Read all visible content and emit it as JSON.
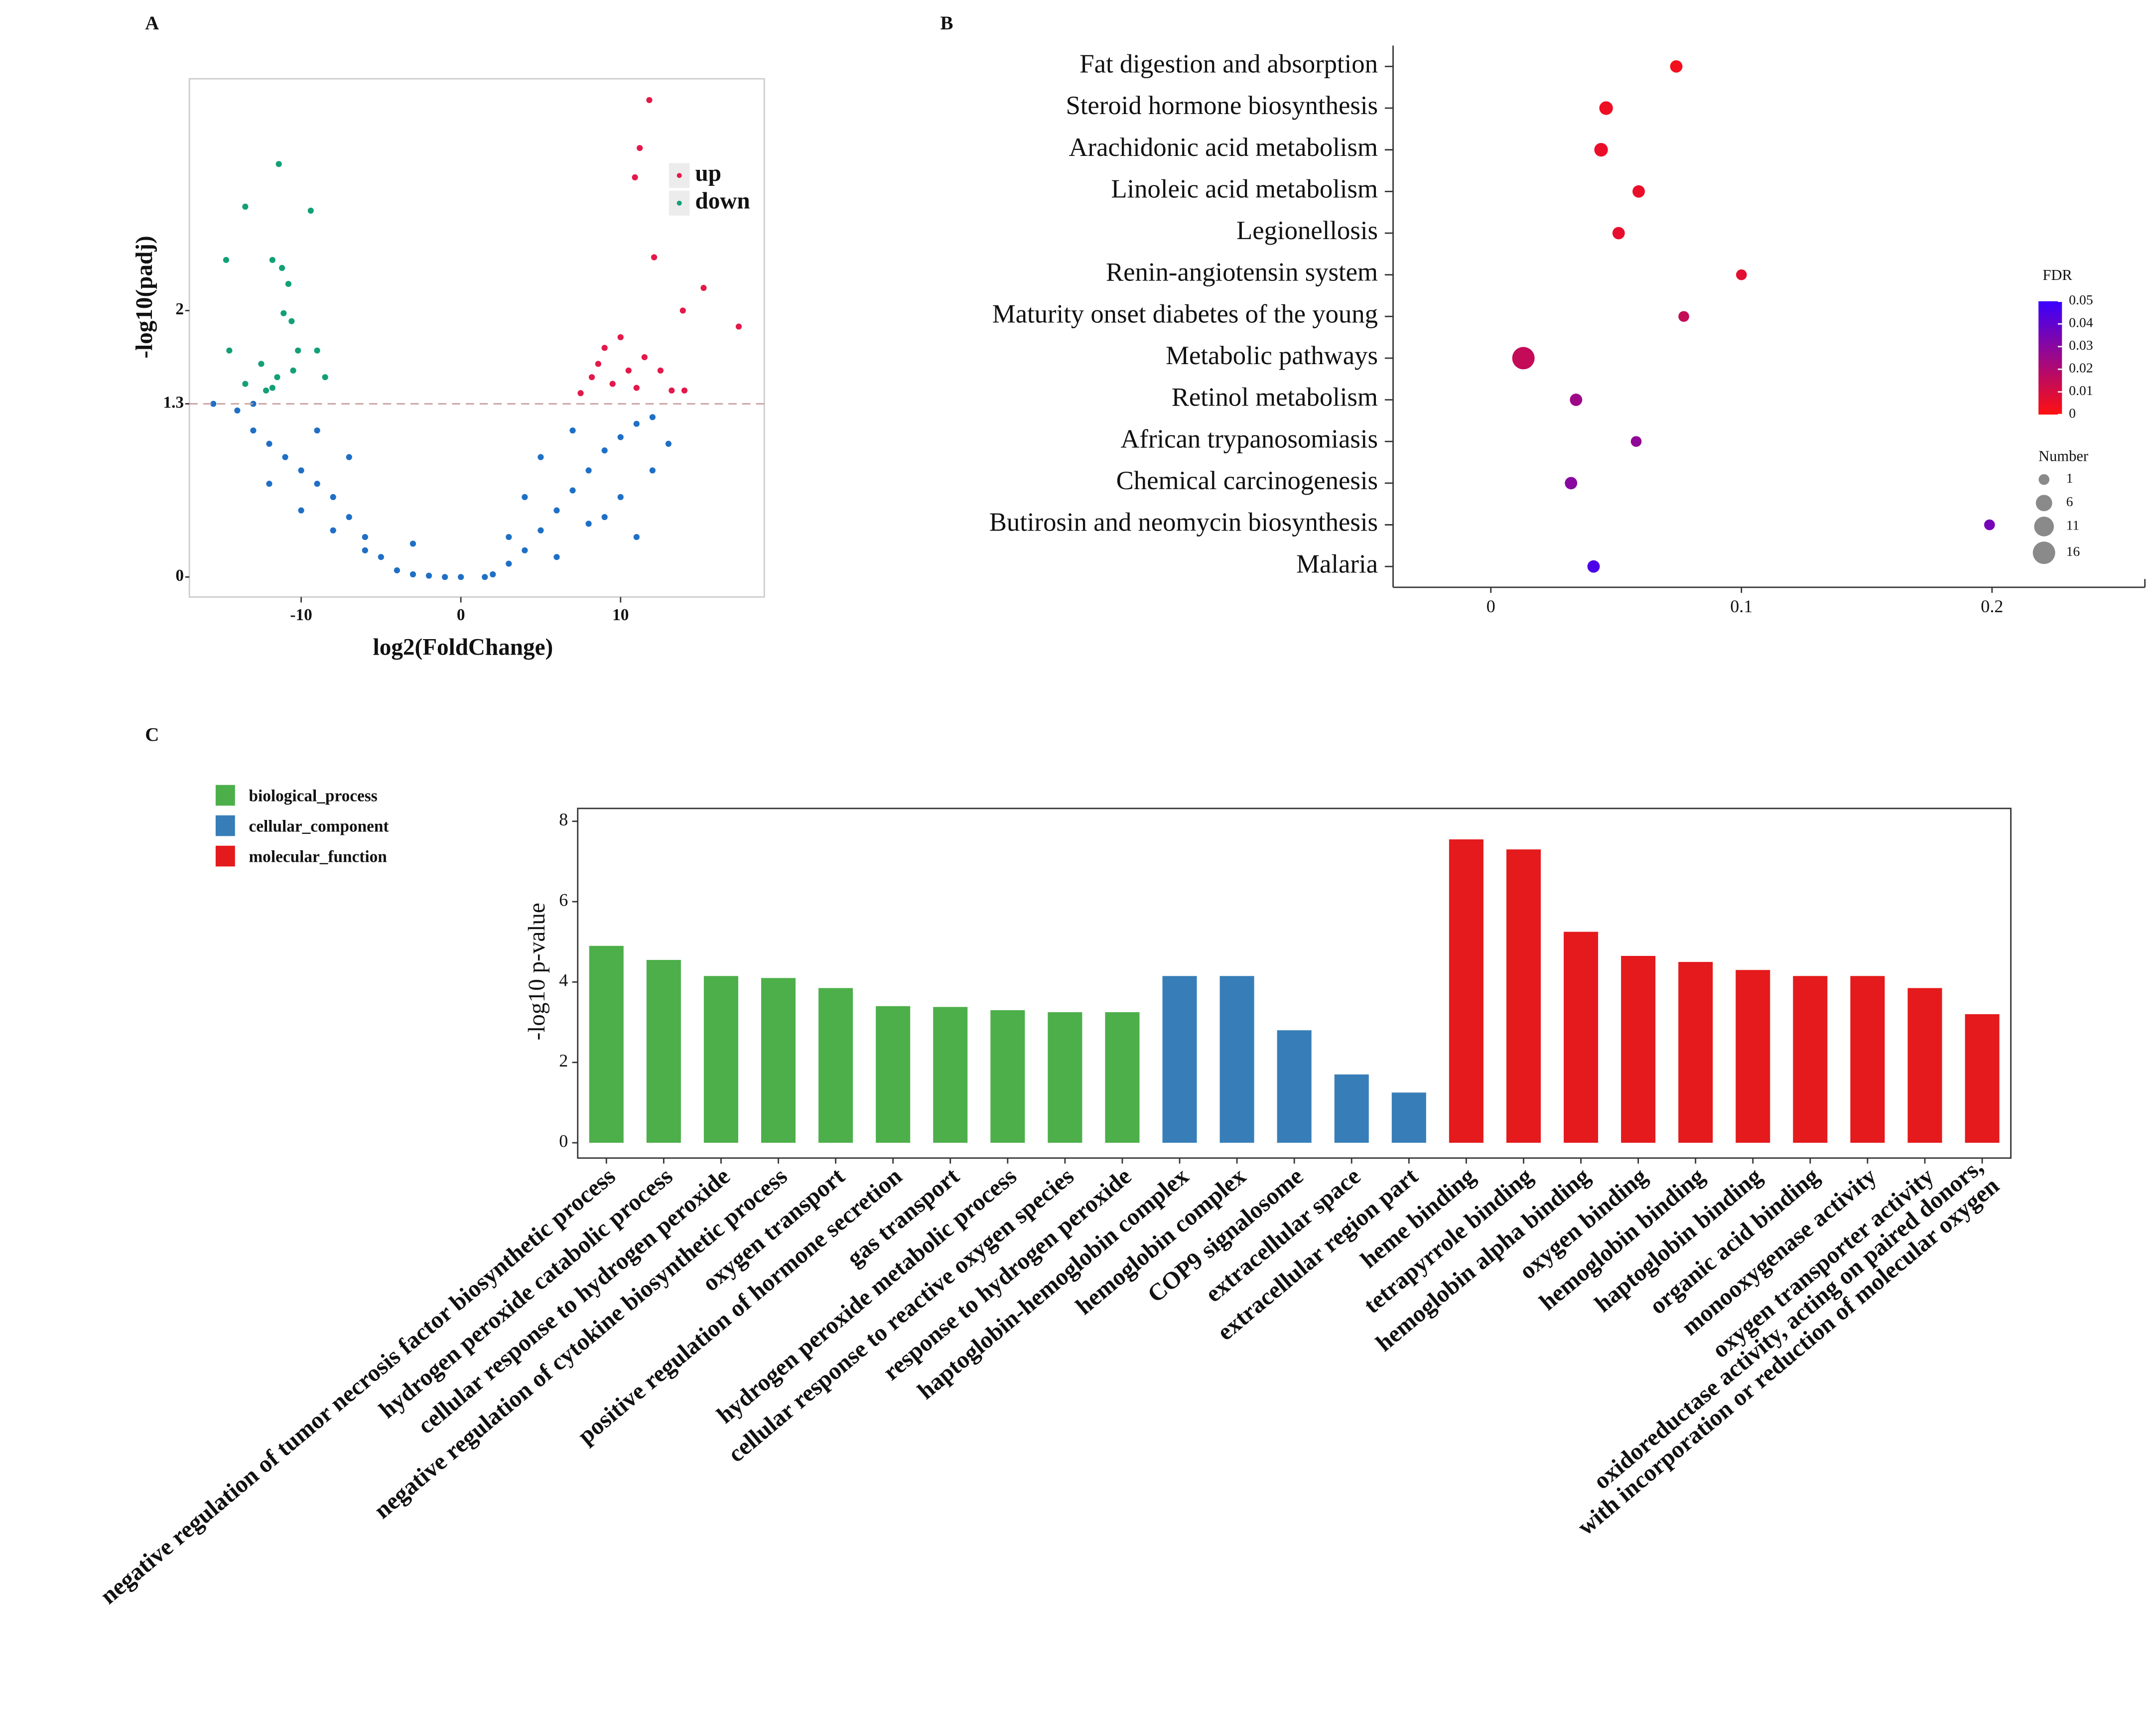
{
  "chart_data": [
    {
      "type": "scatter",
      "panel": "A",
      "x_label": "log2(FoldChange)",
      "y_label": "-log10(padj)",
      "xlim": [
        -17,
        19
      ],
      "ylim": [
        -0.15,
        3.74
      ],
      "xticks": [
        -10,
        0,
        10
      ],
      "yticks": [
        0,
        1.3,
        2
      ],
      "threshold": 1.3,
      "series": [
        {
          "name": "up",
          "color": "#e3194b",
          "x": [
            11.8,
            10.9,
            11.2,
            12.1,
            15.2,
            13.9,
            17.4,
            10.0,
            11.5,
            9.0,
            10.5,
            12.5,
            8.2,
            7.5,
            13.2,
            9.5,
            11.0,
            14.0,
            8.6
          ],
          "values": [
            3.58,
            3.0,
            3.22,
            2.4,
            2.17,
            2.0,
            1.88,
            1.8,
            1.65,
            1.72,
            1.55,
            1.55,
            1.5,
            1.38,
            1.4,
            1.45,
            1.42,
            1.4,
            1.6
          ]
        },
        {
          "name": "down",
          "color": "#13a077",
          "x": [
            -11.4,
            -13.5,
            -9.4,
            -14.7,
            -11.8,
            -11.2,
            -10.8,
            -11.1,
            -10.6,
            -14.5,
            -10.2,
            -9.0,
            -12.5,
            -13.5,
            -10.5,
            -8.5,
            -11.5,
            -12.2,
            -11.8
          ],
          "values": [
            3.1,
            2.78,
            2.75,
            2.38,
            2.38,
            2.32,
            2.2,
            1.98,
            1.92,
            1.7,
            1.7,
            1.7,
            1.6,
            1.45,
            1.55,
            1.5,
            1.5,
            1.4,
            1.42
          ]
        },
        {
          "color": "#1f6fc5",
          "x": [
            -15.5,
            -14,
            -13,
            -12,
            -11,
            -10,
            -9,
            -8,
            -7,
            -6,
            -5,
            -4,
            -3,
            -2,
            -1,
            1.5,
            2,
            3,
            4,
            5,
            6,
            7,
            8,
            9,
            10,
            11,
            12,
            13,
            8,
            10,
            12,
            -12,
            -10,
            -8,
            -6,
            -9,
            -7,
            5,
            7,
            4,
            6,
            9,
            -13,
            11,
            0,
            3,
            -3
          ],
          "values": [
            1.3,
            1.25,
            1.1,
            1.0,
            0.9,
            0.8,
            0.7,
            0.6,
            0.45,
            0.3,
            0.15,
            0.05,
            0.02,
            0.01,
            0,
            0,
            0.02,
            0.1,
            0.2,
            0.35,
            0.5,
            0.65,
            0.8,
            0.95,
            1.05,
            1.15,
            1.2,
            1.0,
            0.4,
            0.6,
            0.8,
            0.7,
            0.5,
            0.35,
            0.2,
            1.1,
            0.9,
            0.9,
            1.1,
            0.6,
            0.15,
            0.45,
            1.3,
            0.3,
            0,
            0.3,
            0.25
          ]
        }
      ]
    },
    {
      "type": "bubble",
      "panel": "B",
      "categories": [
        "Fat digestion and absorption",
        "Steroid hormone biosynthesis",
        "Arachidonic acid metabolism",
        "Linoleic acid metabolism",
        "Legionellosis",
        "Renin-angiotensin system",
        "Maturity onset diabetes of the young",
        "Metabolic pathways",
        "Retinol metabolism",
        "African trypanosomiasis",
        "Chemical carcinogenesis",
        "Butirosin and neomycin biosynthesis",
        "Malaria"
      ],
      "values": [
        0.074,
        0.046,
        0.044,
        0.059,
        0.051,
        0.1,
        0.077,
        0.013,
        0.034,
        0.058,
        0.032,
        0.199,
        0.041
      ],
      "sizes": [
        2,
        3,
        3,
        2,
        2,
        1,
        1,
        16,
        2,
        1,
        2,
        1,
        2
      ],
      "fdr": [
        0.003,
        0.004,
        0.005,
        0.005,
        0.006,
        0.007,
        0.015,
        0.015,
        0.025,
        0.028,
        0.03,
        0.035,
        0.045
      ],
      "xlim": [
        -0.039,
        0.261
      ],
      "xticks": [
        0,
        0.1,
        0.2
      ],
      "color_title": "FDR",
      "color_low": "#ff1010",
      "color_high": "#3a00ff",
      "color_lim": [
        0,
        0.05
      ],
      "color_ticks": [
        0,
        0.01,
        0.02,
        0.03,
        0.04,
        0.05
      ],
      "size_title": "Number",
      "size_ticks": [
        1,
        6,
        11,
        16
      ]
    },
    {
      "type": "bar",
      "panel": "C",
      "y_label": "-log10 p-value",
      "ylim": [
        -0.38,
        8.32
      ],
      "yticks": [
        0,
        2,
        4,
        6,
        8
      ],
      "series": [
        {
          "name": "biological_process",
          "color": "#4daf4a",
          "categories": [
            "negative regulation of tumor necrosis factor biosynthetic process",
            "hydrogen peroxide catabolic process",
            "cellular response to hydrogen peroxide",
            "negative regulation of cytokine biosynthetic process",
            "oxygen transport",
            "positive regulation of hormone secretion",
            "gas transport",
            "hydrogen peroxide metabolic process",
            "cellular response to reactive oxygen species",
            "response to hydrogen peroxide"
          ],
          "values": [
            4.9,
            4.55,
            4.15,
            4.1,
            3.85,
            3.4,
            3.38,
            3.3,
            3.25,
            3.25
          ]
        },
        {
          "name": "cellular_component",
          "color": "#377eb8",
          "categories": [
            "haptoglobin-hemoglobin complex",
            "hemoglobin complex",
            "COP9 signalosome",
            "extracellular space",
            "extracellular region part"
          ],
          "values": [
            4.15,
            4.15,
            2.8,
            1.7,
            1.25
          ]
        },
        {
          "name": "molecular_function",
          "color": "#e41a1c",
          "categories": [
            "heme binding",
            "tetrapyrrole binding",
            "hemoglobin alpha binding",
            "oxygen binding",
            "hemoglobin binding",
            "haptoglobin binding",
            "organic acid binding",
            "monooxygenase activity",
            "oxygen transporter activity",
            [
              "oxidoreductase activity, acting on paired donors,",
              "with incorporation or reduction of molecular oxygen"
            ]
          ],
          "values": [
            7.55,
            7.3,
            5.25,
            4.65,
            4.5,
            4.3,
            4.15,
            4.15,
            3.85,
            3.2
          ]
        }
      ]
    }
  ]
}
